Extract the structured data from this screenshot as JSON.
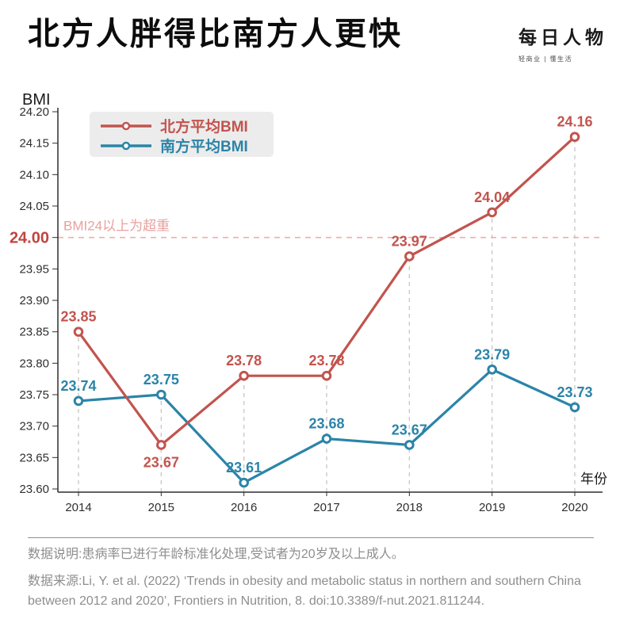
{
  "header": {
    "title": "北方人胖得比南方人更快",
    "logo": {
      "name": "每日人物",
      "tagline": "轻商业 | 懂生活"
    }
  },
  "chart_data": {
    "type": "line",
    "title": "北方人胖得比南方人更快",
    "ylabel": "BMI",
    "xlabel": "年份",
    "x": [
      2014,
      2015,
      2016,
      2017,
      2018,
      2019,
      2020
    ],
    "series": [
      {
        "name": "北方平均BMI",
        "region": "north",
        "color": "#c2544e",
        "values": [
          23.85,
          23.67,
          23.78,
          23.78,
          23.97,
          24.04,
          24.16
        ],
        "label_positions": [
          "above",
          "below",
          "above",
          "above",
          "above",
          "above",
          "above"
        ]
      },
      {
        "name": "南方平均BMI",
        "region": "south",
        "color": "#2b84a8",
        "values": [
          23.74,
          23.75,
          23.61,
          23.68,
          23.67,
          23.79,
          23.73
        ],
        "label_positions": [
          "above",
          "above",
          "above",
          "above",
          "above",
          "above",
          "above"
        ]
      }
    ],
    "ylim": [
      23.6,
      24.2
    ],
    "ytick_step": 0.05,
    "ytick_labels": [
      "23.60",
      "23.65",
      "23.70",
      "23.75",
      "23.80",
      "23.85",
      "23.90",
      "23.95",
      "24.00",
      "24.05",
      "24.10",
      "24.15",
      "24.20"
    ],
    "highlight_ytick": {
      "value": 24.0,
      "color": "#c0453e"
    },
    "threshold": {
      "value": 24.0,
      "label": "BMI24以上为超重",
      "line_color": "#edafaa",
      "label_color": "#e9a09d"
    },
    "grid": "vertical-dashed",
    "grid_color": "#c6c6c6",
    "axis_color": "#2f2f2f",
    "legend_position": "top-left",
    "legend_bg": "#ececec"
  },
  "footer": {
    "note": "数据说明:患病率已进行年龄标准化处理,受试者为20岁及以上成人。",
    "source": "数据来源:Li, Y. et al. (2022) ‘Trends in obesity and metabolic status in northern and southern China between 2012 and 2020’, Frontiers in Nutrition, 8. doi:10.3389/f-nut.2021.811244."
  }
}
